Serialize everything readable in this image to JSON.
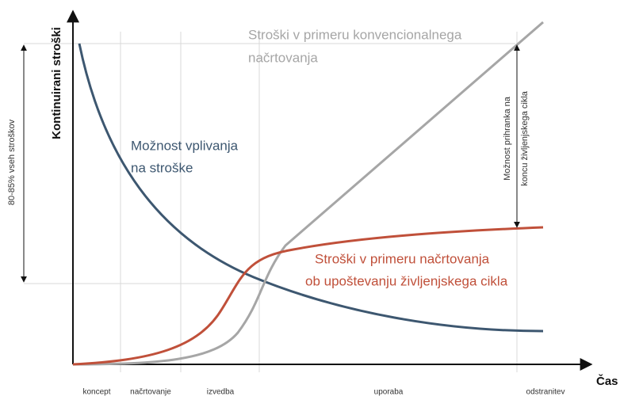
{
  "axes": {
    "y_label": "Kontinuirani stroški",
    "x_label": "Čas"
  },
  "phases": [
    "koncept",
    "načrtovanje",
    "izvedba",
    "uporaba",
    "odstranitev"
  ],
  "annotations": {
    "share": "80-85% vseh stroškov",
    "conventional": [
      "Stroški v primeru konvencionalnega",
      "načrtovanja"
    ],
    "influence": [
      "Možnost vplivanja",
      "na stroške"
    ],
    "lifecycle": [
      "Stroški v primeru načrtovanja",
      "ob upoštevanju življenjskega cikla"
    ],
    "savings": [
      "Možnost prihranka na",
      "koncu življenjskega cikla"
    ]
  }
}
